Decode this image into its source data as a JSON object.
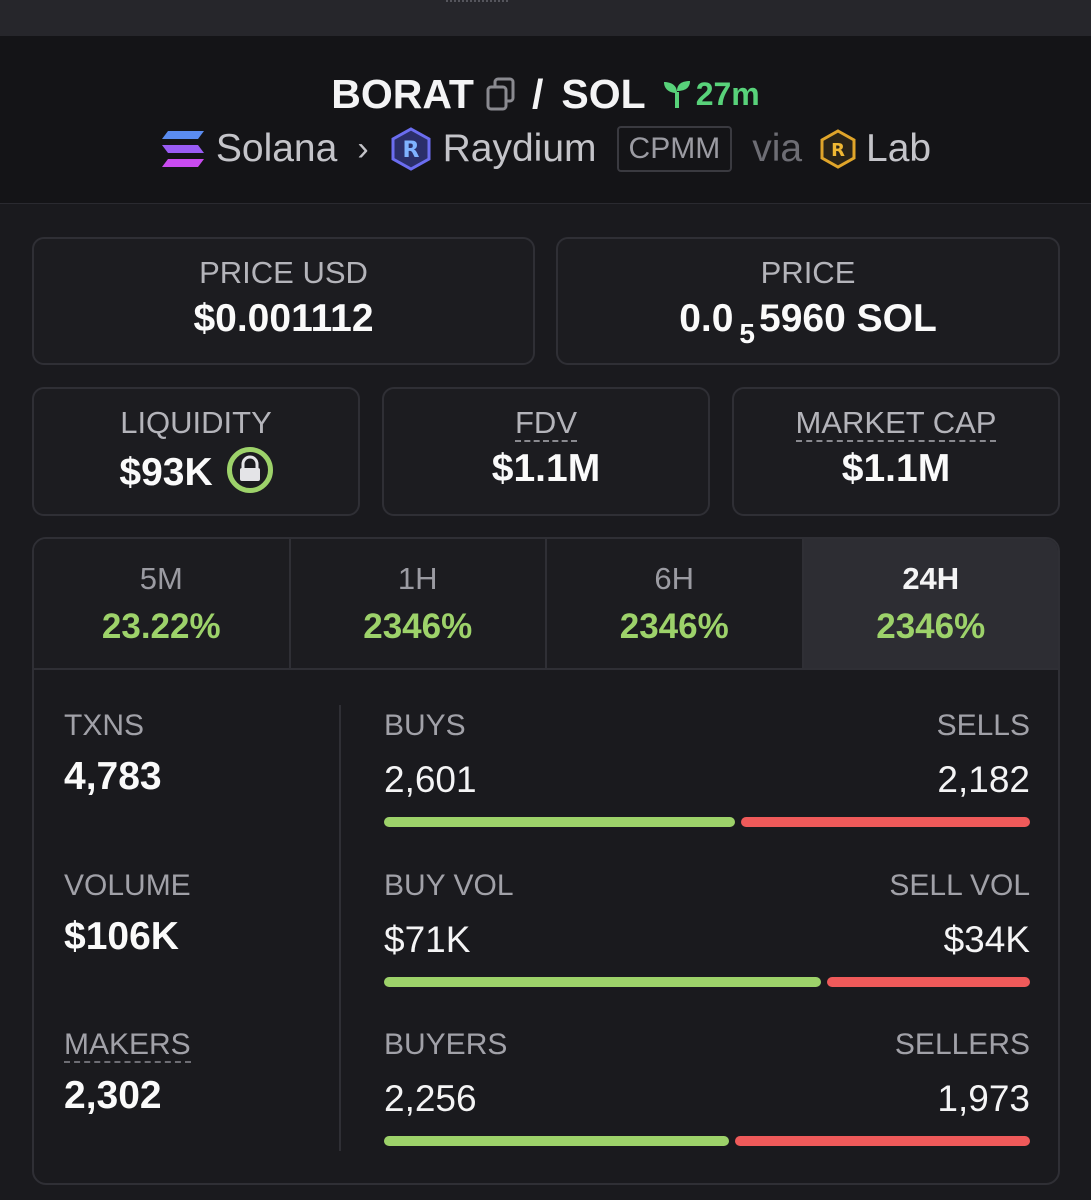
{
  "pair": {
    "base": "BORAT",
    "separator": "/",
    "quote": "SOL",
    "age": "27m"
  },
  "route": {
    "chain": "Solana",
    "dex": "Raydium",
    "pool_type": "CPMM",
    "via_label": "via",
    "launchpad": "Lab"
  },
  "price": {
    "usd_label": "PRICE USD",
    "usd_value": "$0.001112",
    "native_label": "PRICE",
    "native_prefix": "0.0",
    "native_zeros": "5",
    "native_digits": "5960 SOL"
  },
  "metrics": {
    "liquidity_label": "LIQUIDITY",
    "liquidity_value": "$93K",
    "fdv_label": "FDV",
    "fdv_value": "$1.1M",
    "mcap_label": "MARKET CAP",
    "mcap_value": "$1.1M"
  },
  "tabs": [
    {
      "label": "5M",
      "change": "23.22%"
    },
    {
      "label": "1H",
      "change": "2346%"
    },
    {
      "label": "6H",
      "change": "2346%"
    },
    {
      "label": "24H",
      "change": "2346%"
    }
  ],
  "active_tab": "24H",
  "stats": {
    "txns_label": "TXNS",
    "txns_value": "4,783",
    "volume_label": "VOLUME",
    "volume_value": "$106K",
    "makers_label": "MAKERS",
    "makers_value": "2,302",
    "buys_label": "BUYS",
    "buys_value": "2,601",
    "sells_label": "SELLS",
    "sells_value": "2,182",
    "buys_fraction": 0.544,
    "buy_vol_label": "BUY VOL",
    "buy_vol_value": "$71K",
    "sell_vol_label": "SELL VOL",
    "sell_vol_value": "$34K",
    "buy_vol_fraction": 0.676,
    "buyers_label": "BUYERS",
    "buyers_value": "2,256",
    "sellers_label": "SELLERS",
    "sellers_value": "1,973",
    "buyers_fraction": 0.534
  },
  "colors": {
    "positive": "#9dd26a",
    "negative": "#ef5a5a",
    "age": "#58d27a"
  }
}
